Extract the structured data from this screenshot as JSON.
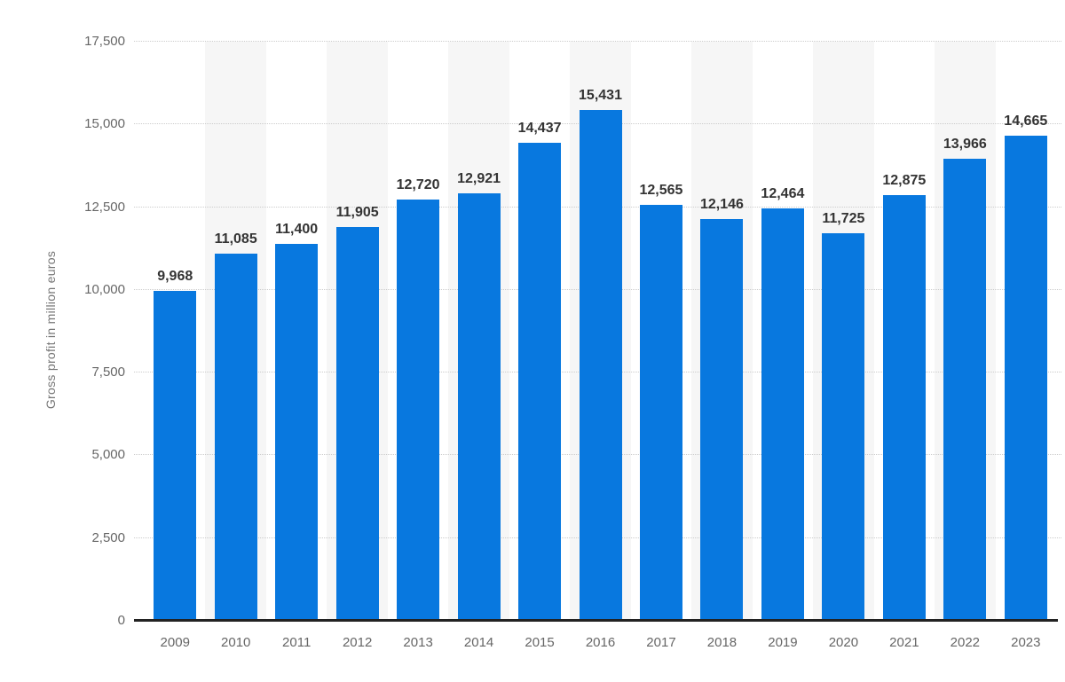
{
  "figure": {
    "background": "#ffffff",
    "bar_color": "#0878df",
    "band_color": "#f6f6f6",
    "gridline_color": "#cccccc",
    "baseline_color": "#222222",
    "value_label_color": "#333333",
    "axis_label_color": "#666666",
    "axis_title_color": "#767676"
  },
  "chart_data": {
    "type": "bar",
    "title": "",
    "xlabel": "",
    "ylabel": "Gross profit in million euros",
    "categories": [
      "2009",
      "2010",
      "2011",
      "2012",
      "2013",
      "2014",
      "2015",
      "2016",
      "2017",
      "2018",
      "2019",
      "2020",
      "2021",
      "2022",
      "2023"
    ],
    "values": [
      9968,
      11085,
      11400,
      11905,
      12720,
      12921,
      14437,
      15431,
      12565,
      12146,
      12464,
      11725,
      12875,
      13966,
      14665
    ],
    "value_labels": [
      "9,968",
      "11,085",
      "11,400",
      "11,905",
      "12,720",
      "12,921",
      "14,437",
      "15,431",
      "12,565",
      "12,146",
      "12,464",
      "11,725",
      "12,875",
      "13,966",
      "14,665"
    ],
    "ylim": [
      0,
      17500
    ],
    "ytick_step": 2500,
    "ytick_values": [
      0,
      2500,
      5000,
      7500,
      10000,
      12500,
      15000,
      17500
    ],
    "ytick_labels": [
      "0",
      "2,500",
      "5,000",
      "7,500",
      "10,000",
      "12,500",
      "15,000",
      "17,500"
    ],
    "grid": "horizontal-dotted",
    "legend": "none",
    "striped_columns": "every-second-starting-2010"
  }
}
